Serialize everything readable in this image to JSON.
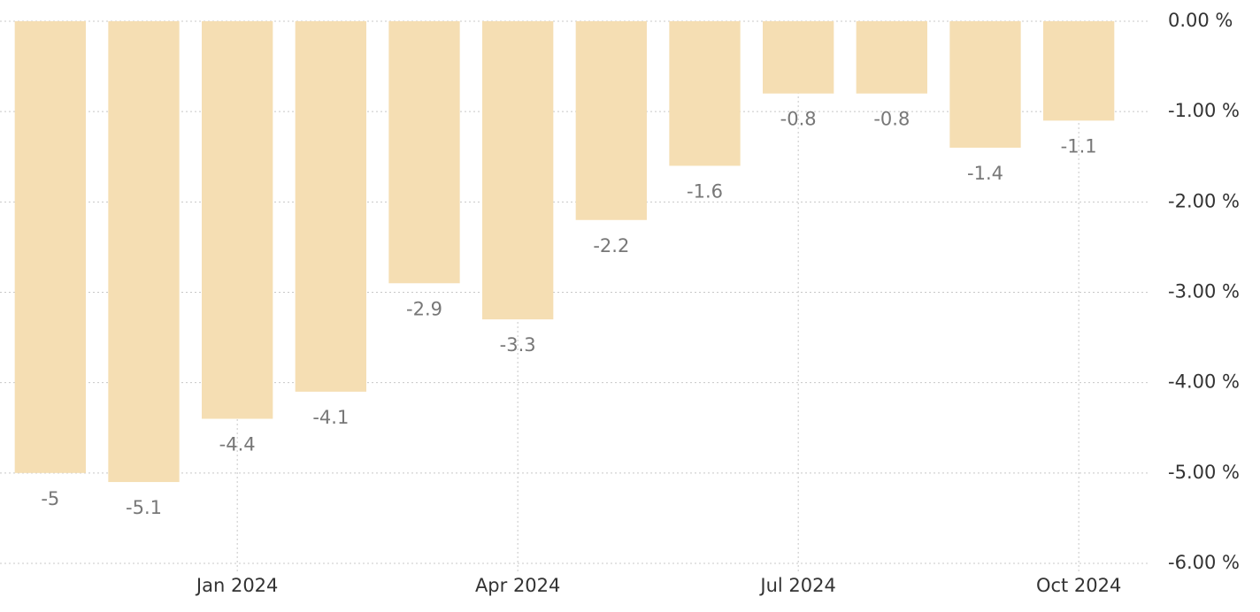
{
  "chart_data": {
    "type": "bar",
    "categories": [
      null,
      null,
      "Jan 2024",
      null,
      null,
      "Apr 2024",
      null,
      null,
      "Jul 2024",
      null,
      null,
      "Oct 2024"
    ],
    "values": [
      -5,
      -5.1,
      -4.4,
      -4.1,
      -2.9,
      -3.3,
      -2.2,
      -1.6,
      -0.8,
      -0.8,
      -1.4,
      -1.1
    ],
    "color": "#f5deb3",
    "ylim": [
      -6,
      0
    ],
    "yticks": [
      {
        "value": 0,
        "label": "0.00 %"
      },
      {
        "value": -1,
        "label": "-1.00 %"
      },
      {
        "value": -2,
        "label": "-2.00 %"
      },
      {
        "value": -3,
        "label": "-3.00 %"
      },
      {
        "value": -4,
        "label": "-4.00 %"
      },
      {
        "value": -5,
        "label": "-5.00 %"
      },
      {
        "value": -6,
        "label": "-6.00 %"
      }
    ],
    "grid": true
  }
}
